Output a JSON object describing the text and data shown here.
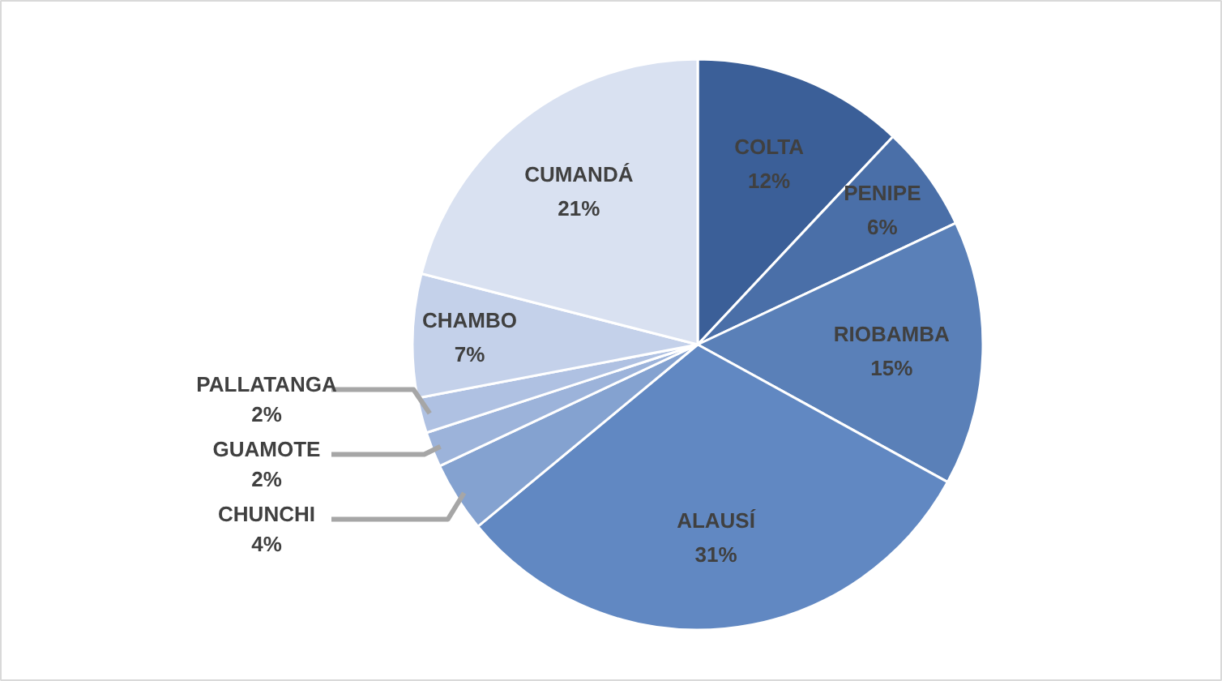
{
  "chart_data": {
    "type": "pie",
    "categories": [
      "COLTA",
      "PENIPE",
      "RIOBAMBA",
      "ALAUSÍ",
      "CHUNCHI",
      "GUAMOTE",
      "PALLATANGA",
      "CHAMBO",
      "CUMANDÁ"
    ],
    "values": [
      12,
      6,
      15,
      31,
      4,
      2,
      2,
      7,
      21
    ],
    "value_labels": [
      "12%",
      "6%",
      "15%",
      "31%",
      "4%",
      "2%",
      "2%",
      "7%",
      "21%"
    ],
    "colors": [
      "#3b5f98",
      "#4a6fa8",
      "#5a80b8",
      "#6188c2",
      "#84a2d0",
      "#9cb3da",
      "#afc1e2",
      "#c4d1ea",
      "#d9e1f1"
    ]
  }
}
